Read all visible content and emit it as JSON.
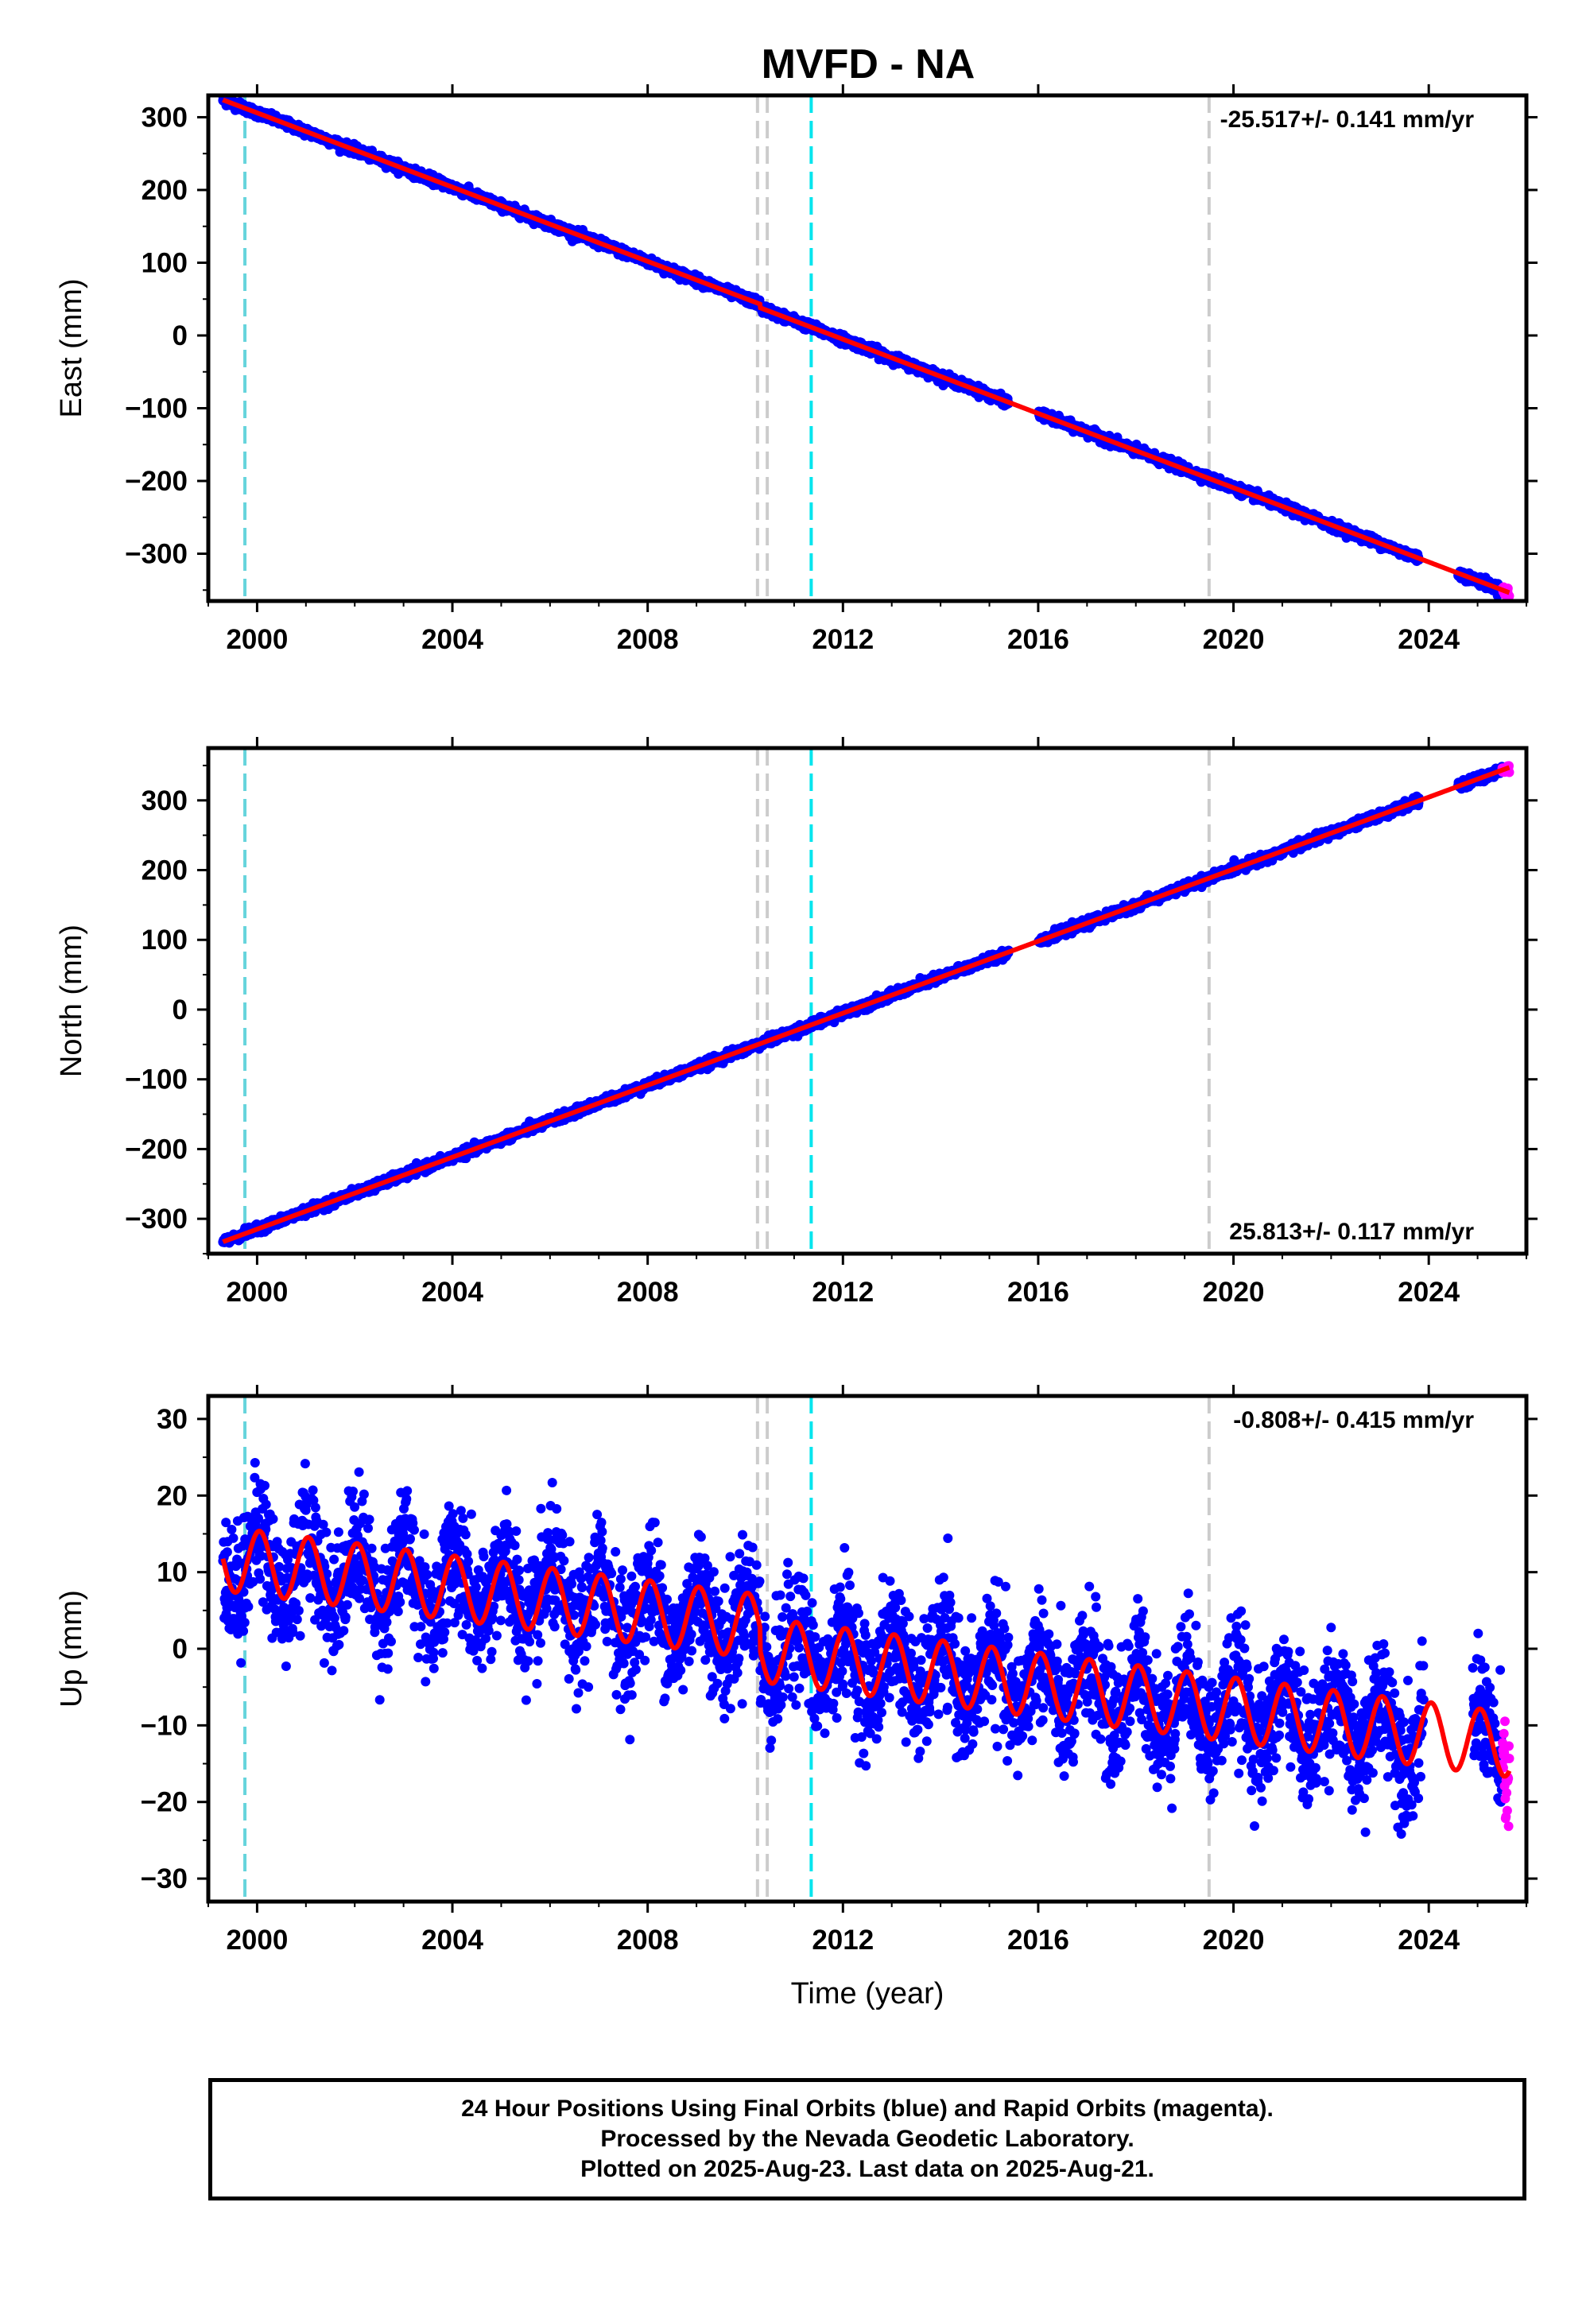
{
  "title": "MVFD - NA",
  "colors": {
    "final_orbits": "#0000ff",
    "rapid_orbits": "#ff00ff",
    "model": "#ff0000",
    "equipment_change": "#cccccc",
    "earthquake_cyan": "#00e5ee",
    "earthquake_teal": "#66d4dc"
  },
  "chart_data": [
    {
      "type": "scatter",
      "ylabel": "East (mm)",
      "xlabel": "",
      "xlim": [
        1999.0,
        2026.0
      ],
      "ylim": [
        -365,
        330
      ],
      "xticks": [
        2000,
        2004,
        2008,
        2012,
        2016,
        2020,
        2024
      ],
      "xtick_labels": [
        "2000",
        "2004",
        "2008",
        "2012",
        "2016",
        "2020",
        "2024"
      ],
      "yticks": [
        -300,
        -200,
        -100,
        0,
        100,
        200,
        300
      ],
      "ytick_labels": [
        "−300",
        "−200",
        "−100",
        "0",
        "100",
        "200",
        "300"
      ],
      "rate_label": "-25.517+/- 0.141 mm/yr",
      "rate_position": "top-right",
      "trend": {
        "anchor_year": 2011.6,
        "anchor_value": 5,
        "rate": -25.517
      },
      "seasonal_amplitude": 0,
      "scatter_noise": 3,
      "breaks": [
        {
          "year": 2010.3,
          "offset": 5
        }
      ],
      "data_start": 1999.3,
      "data_end": 2025.65,
      "gaps": [
        [
          2015.4,
          2016.0
        ],
        [
          2023.8,
          2024.6
        ]
      ],
      "rapid_start": 2025.5
    },
    {
      "type": "scatter",
      "ylabel": "North (mm)",
      "xlabel": "",
      "xlim": [
        1999.0,
        2026.0
      ],
      "ylim": [
        -350,
        375
      ],
      "xticks": [
        2000,
        2004,
        2008,
        2012,
        2016,
        2020,
        2024
      ],
      "xtick_labels": [
        "2000",
        "2004",
        "2008",
        "2012",
        "2016",
        "2020",
        "2024"
      ],
      "yticks": [
        -300,
        -200,
        -100,
        0,
        100,
        200,
        300
      ],
      "ytick_labels": [
        "−300",
        "−200",
        "−100",
        "0",
        "100",
        "200",
        "300"
      ],
      "rate_label": "25.813+/- 0.117 mm/yr",
      "rate_position": "bottom-right",
      "trend": {
        "anchor_year": 2012.2,
        "anchor_value": 0,
        "rate": 25.813
      },
      "seasonal_amplitude": 0,
      "scatter_noise": 3,
      "breaks": [
        {
          "year": 2010.3,
          "offset": 0
        }
      ],
      "data_start": 1999.3,
      "data_end": 2025.65,
      "gaps": [
        [
          2015.4,
          2016.0
        ],
        [
          2023.8,
          2024.6
        ]
      ],
      "rapid_start": 2025.5
    },
    {
      "type": "scatter",
      "ylabel": "Up (mm)",
      "xlabel": "Time (year)",
      "xlim": [
        1999.0,
        2026.0
      ],
      "ylim": [
        -33,
        33
      ],
      "xticks": [
        2000,
        2004,
        2008,
        2012,
        2016,
        2020,
        2024
      ],
      "xtick_labels": [
        "2000",
        "2004",
        "2008",
        "2012",
        "2016",
        "2020",
        "2024"
      ],
      "yticks": [
        -30,
        -20,
        -10,
        0,
        10,
        20,
        30
      ],
      "ytick_labels": [
        "−30",
        "−20",
        "−10",
        "0",
        "10",
        "20",
        "30"
      ],
      "rate_label": "-0.808+/- 0.415 mm/yr",
      "rate_position": "top-right",
      "trend": {
        "anchor_year": 2012.0,
        "anchor_value": -1.5,
        "rate": -0.808
      },
      "seasonal_amplitude": 4.2,
      "scatter_noise": 4.0,
      "breaks": [
        {
          "year": 2010.3,
          "offset": 3
        }
      ],
      "data_start": 1999.3,
      "data_end": 2025.65,
      "gaps": [
        [
          2023.9,
          2024.9
        ]
      ],
      "rapid_start": 2025.5
    }
  ],
  "vertical_markers": [
    {
      "year": 1999.75,
      "style": "earthquake_teal"
    },
    {
      "year": 2010.25,
      "style": "equipment_change"
    },
    {
      "year": 2010.45,
      "style": "equipment_change"
    },
    {
      "year": 2011.35,
      "style": "earthquake_cyan"
    },
    {
      "year": 2019.5,
      "style": "equipment_change"
    }
  ],
  "footer": {
    "line1": "24 Hour Positions Using Final Orbits (blue) and Rapid Orbits (magenta).",
    "line2": "Processed by the Nevada Geodetic Laboratory.",
    "line3": "Plotted on 2025-Aug-23. Last data on 2025-Aug-21."
  }
}
